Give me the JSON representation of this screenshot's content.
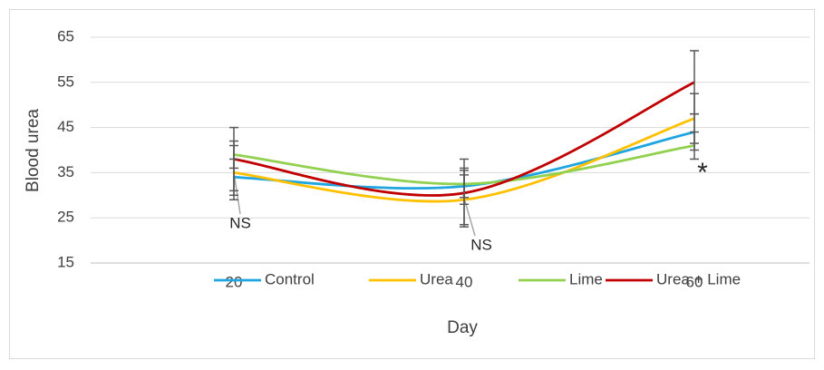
{
  "chart_data": {
    "type": "line",
    "smooth": true,
    "x_label": "Day",
    "y_label": "Blood urea",
    "categories": [
      "20",
      "40",
      "60"
    ],
    "series": [
      {
        "name": "Control",
        "color": "#1fa5e0",
        "values": [
          34,
          32,
          44
        ],
        "error": [
          4,
          4,
          4
        ]
      },
      {
        "name": "Urea",
        "color": "#ffc000",
        "values": [
          35,
          29,
          47
        ],
        "error": [
          6,
          5.5,
          5.5
        ]
      },
      {
        "name": "Lime",
        "color": "#92d050",
        "values": [
          39,
          32.5,
          41
        ],
        "error": [
          3,
          3,
          3
        ]
      },
      {
        "name": "Urea + Lime",
        "color": "#c00000",
        "values": [
          38,
          30.5,
          55
        ],
        "error": [
          7,
          7.5,
          7
        ]
      }
    ],
    "ylim": [
      15,
      65
    ],
    "yticks": [
      15,
      25,
      35,
      45,
      55,
      65
    ],
    "grid": true,
    "annotations": [
      "NS",
      "NS",
      "*"
    ]
  }
}
